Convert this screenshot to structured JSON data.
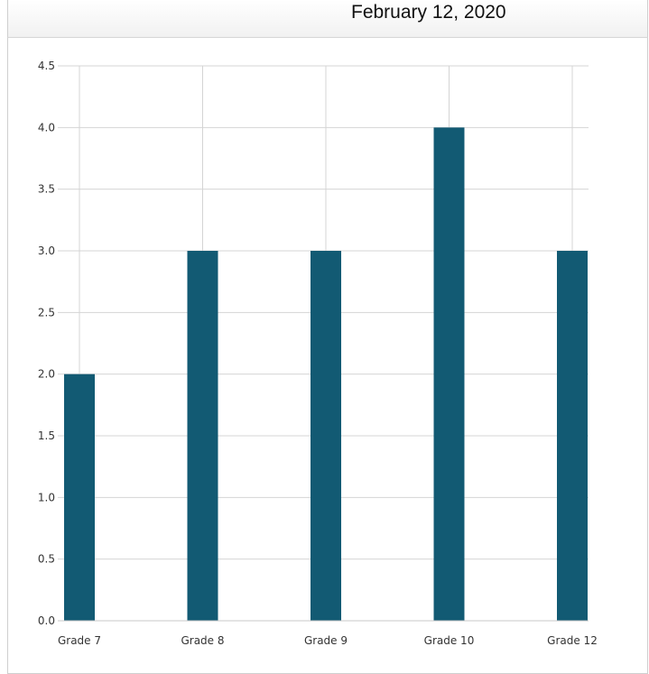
{
  "header": {
    "date": "February 12, 2020"
  },
  "colors": {
    "bar": "#125a73",
    "grid": "#d4d4d4",
    "axis": "#c8c8c8"
  },
  "chart_data": {
    "type": "bar",
    "categories": [
      "Grade 7",
      "Grade 8",
      "Grade 9",
      "Grade 10",
      "Grade 12"
    ],
    "values": [
      2.0,
      3.0,
      3.0,
      4.0,
      3.0
    ],
    "title": "",
    "xlabel": "",
    "ylabel": "",
    "ylim": [
      0,
      4.5
    ],
    "yticks": [
      "0.0",
      "0.5",
      "1.0",
      "1.5",
      "2.0",
      "2.5",
      "3.0",
      "3.5",
      "4.0",
      "4.5"
    ],
    "grid": true,
    "legend": "none"
  }
}
